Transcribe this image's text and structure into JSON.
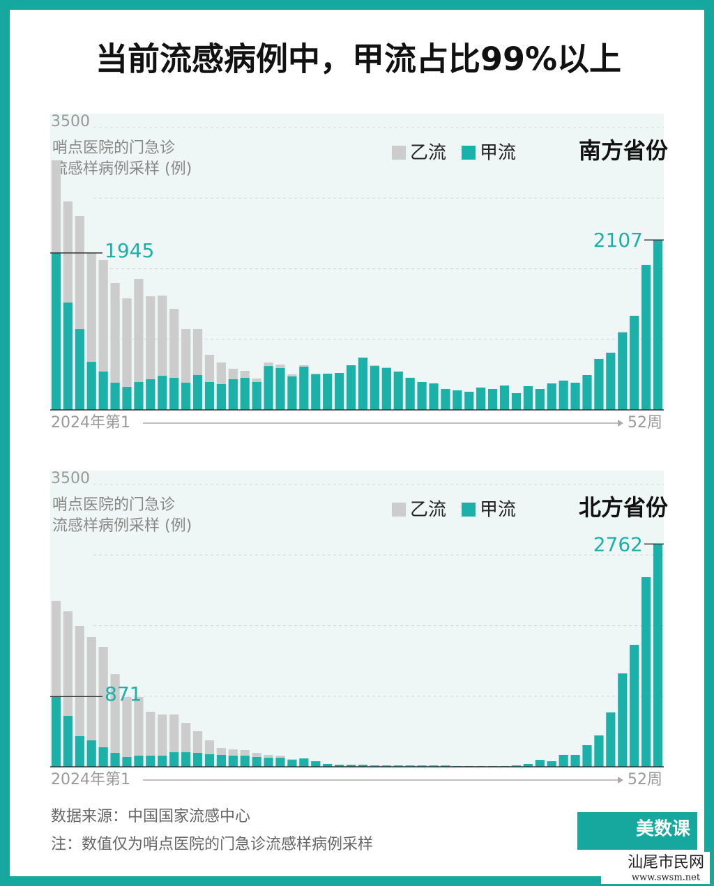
{
  "title": "当前流感病例中，甲流占比99%以上",
  "chart_data": [
    {
      "type": "stacked-bar",
      "subtitle": "南方省份",
      "ylabel": [
        "哨点医院的门急诊",
        "流感样病例采样 (例)"
      ],
      "categories": [
        "2024年第1",
        null,
        null,
        null,
        null,
        null,
        null,
        null,
        null,
        null,
        null,
        null,
        null,
        null,
        null,
        null,
        null,
        null,
        null,
        null,
        null,
        null,
        null,
        null,
        null,
        null,
        null,
        null,
        null,
        null,
        null,
        null,
        null,
        null,
        null,
        null,
        null,
        null,
        null,
        null,
        null,
        null,
        null,
        null,
        null,
        null,
        null,
        null,
        null,
        null,
        null,
        "52周"
      ],
      "series": [
        {
          "name": "乙流",
          "color": "#cccccc",
          "values": [
            1149,
            1253,
            1400,
            1348,
            1383,
            1236,
            1098,
            1279,
            1029,
            994,
            855,
            665,
            570,
            337,
            268,
            130,
            86,
            43,
            44,
            43,
            26,
            17,
            9,
            0,
            0,
            0,
            0,
            9,
            9,
            0,
            0,
            0,
            0,
            0,
            0,
            0,
            0,
            0,
            0,
            0,
            0,
            0,
            0,
            0,
            0,
            0,
            0,
            0,
            10,
            0,
            0,
            0
          ]
        },
        {
          "name": "甲流",
          "color": "#1bb0a8",
          "values": [
            1945,
            1331,
            1002,
            596,
            475,
            337,
            285,
            346,
            380,
            423,
            398,
            337,
            432,
            346,
            320,
            380,
            398,
            346,
            544,
            519,
            415,
            536,
            441,
            449,
            458,
            553,
            648,
            544,
            519,
            475,
            398,
            346,
            328,
            259,
            242,
            225,
            277,
            259,
            302,
            207,
            294,
            259,
            328,
            363,
            337,
            432,
            631,
            709,
            959,
            1167,
            1798,
            2107
          ]
        }
      ],
      "ylim": [
        0,
        3500
      ],
      "yticks": [
        0,
        3500
      ],
      "grid": [
        875,
        1750,
        2625,
        3500
      ]
    },
    {
      "type": "stacked-bar",
      "subtitle": "北方省份",
      "ylabel": [
        "哨点医院的门急诊",
        "流感样病例采样 (例)"
      ],
      "categories": [
        "2024年第1",
        null,
        null,
        null,
        null,
        null,
        null,
        null,
        null,
        null,
        null,
        null,
        null,
        null,
        null,
        null,
        null,
        null,
        null,
        null,
        null,
        null,
        null,
        null,
        null,
        null,
        null,
        null,
        null,
        null,
        null,
        null,
        null,
        null,
        null,
        null,
        null,
        null,
        null,
        null,
        null,
        null,
        null,
        null,
        null,
        null,
        null,
        null,
        null,
        null,
        null,
        "52周"
      ],
      "series": [
        {
          "name": "乙流",
          "color": "#cccccc",
          "values": [
            1186,
            1296,
            1366,
            1279,
            1244,
            976,
            743,
            726,
            545,
            510,
            467,
            363,
            268,
            172,
            86,
            78,
            69,
            52,
            35,
            26,
            9,
            0,
            0,
            0,
            0,
            0,
            0,
            0,
            0,
            0,
            0,
            0,
            0,
            0,
            0,
            0,
            0,
            0,
            0,
            0,
            0,
            0,
            0,
            0,
            0,
            0,
            0,
            0,
            0,
            0,
            0,
            0
          ]
        },
        {
          "name": "甲流",
          "color": "#1bb0a8",
          "values": [
            871,
            631,
            380,
            328,
            242,
            173,
            121,
            138,
            138,
            138,
            181,
            181,
            173,
            156,
            147,
            138,
            138,
            121,
            112,
            112,
            86,
            104,
            69,
            35,
            26,
            26,
            26,
            17,
            17,
            17,
            17,
            17,
            17,
            17,
            9,
            9,
            9,
            9,
            9,
            17,
            35,
            86,
            69,
            147,
            147,
            268,
            389,
            674,
            1158,
            1512,
            2351,
            2762
          ]
        }
      ],
      "ylim": [
        0,
        3500
      ],
      "yticks": [
        0,
        3500
      ],
      "grid": [
        875,
        1750,
        2625,
        3500
      ]
    }
  ],
  "footer": {
    "source": "数据来源：中国国家流感中心",
    "note": "注：数值仅为哨点医院的门急诊流感样病例采样",
    "logo": "美数课",
    "watermark": "汕尾市民网",
    "watermark_url": "www.swsm.net"
  }
}
